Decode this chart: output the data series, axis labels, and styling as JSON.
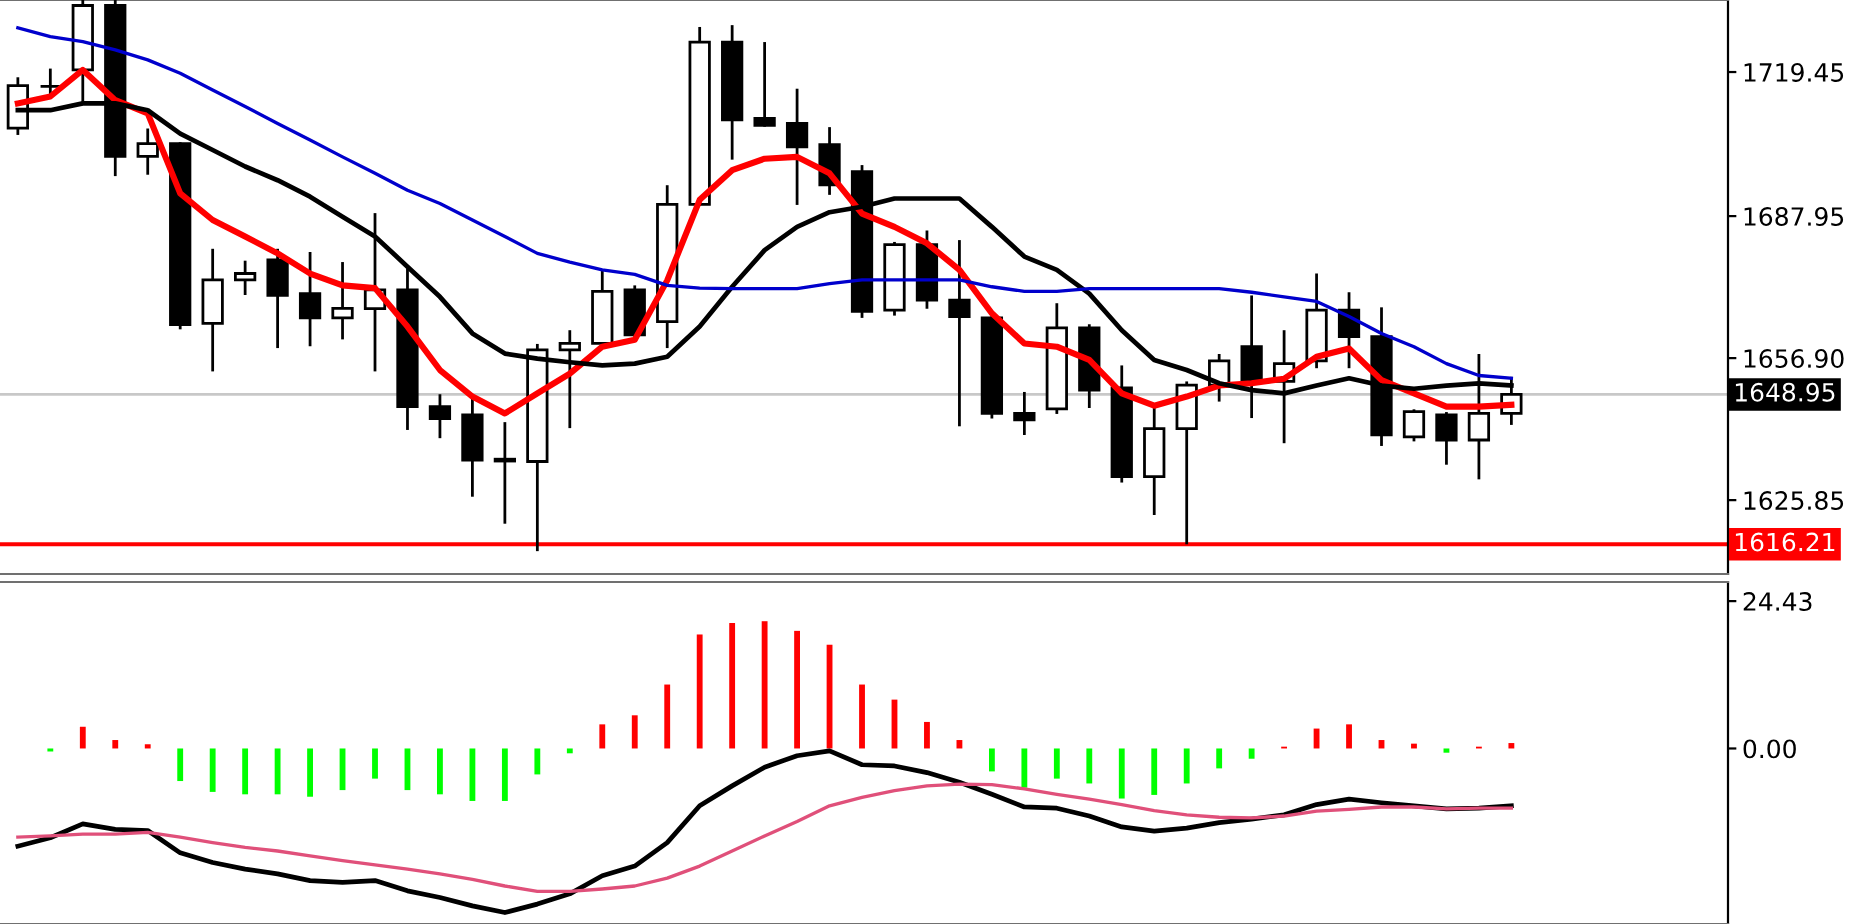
{
  "chart_data": [
    {
      "type": "candlestick",
      "categories": [
        null,
        null,
        null,
        null,
        null,
        null,
        null,
        null,
        null,
        null,
        null,
        null,
        null,
        null,
        null,
        null,
        null,
        null,
        null,
        null,
        null,
        null,
        null,
        null,
        null,
        null,
        null,
        null,
        null,
        null,
        null,
        null,
        null,
        null,
        null,
        null,
        null,
        null,
        null,
        null,
        null,
        null,
        null,
        null,
        null,
        null,
        null
      ],
      "ohlc": [
        [
          1707.2,
          1718.0,
          1706.0,
          1716.5
        ],
        [
          1716.3,
          1719.9,
          1714.8,
          1716.3
        ],
        [
          1719.9,
          1735.0,
          1712.6,
          1734.0
        ],
        [
          1734.0,
          1735.0,
          1697.0,
          1701.0
        ],
        [
          1701.0,
          1706.8,
          1697.3,
          1703.8
        ],
        [
          1703.8,
          1703.8,
          1663.5,
          1664.2
        ],
        [
          1664.5,
          1680.5,
          1654.3,
          1674.0
        ],
        [
          1674.0,
          1677.9,
          1671.0,
          1675.4
        ],
        [
          1678.4,
          1680.5,
          1659.4,
          1670.6
        ],
        [
          1671.0,
          1679.8,
          1659.8,
          1665.7
        ],
        [
          1665.7,
          1677.6,
          1661.3,
          1667.8
        ],
        [
          1667.7,
          1688.3,
          1654.3,
          1671.8
        ],
        [
          1671.8,
          1676.2,
          1641.5,
          1646.3
        ],
        [
          1646.3,
          1648.7,
          1639.7,
          1643.7
        ],
        [
          1644.5,
          1648.0,
          1626.9,
          1634.6
        ],
        [
          1634.8,
          1642.6,
          1621.0,
          1634.4
        ],
        [
          1634.3,
          1659.7,
          1615.0,
          1658.7
        ],
        [
          1658.7,
          1662.7,
          1641.9,
          1660.1
        ],
        [
          1660.1,
          1675.7,
          1660.0,
          1671.5
        ],
        [
          1671.8,
          1672.5,
          1661.5,
          1662.0
        ],
        [
          1664.9,
          1694.4,
          1659.4,
          1690.5
        ],
        [
          1690.5,
          1729.0,
          1690.5,
          1726.0
        ],
        [
          1726.0,
          1729.4,
          1700.6,
          1709.0
        ],
        [
          1709.3,
          1725.7,
          1707.8,
          1707.8
        ],
        [
          1708.2,
          1715.5,
          1690.7,
          1703.1
        ],
        [
          1703.6,
          1707.1,
          1692.9,
          1694.8
        ],
        [
          1697.7,
          1698.8,
          1666.0,
          1667.1
        ],
        [
          1667.4,
          1682.0,
          1666.5,
          1681.7
        ],
        [
          1681.7,
          1684.5,
          1668.0,
          1669.6
        ],
        [
          1669.6,
          1682.4,
          1642.3,
          1666.0
        ],
        [
          1665.7,
          1666.0,
          1644.0,
          1644.8
        ],
        [
          1644.8,
          1649.2,
          1640.4,
          1643.4
        ],
        [
          1645.8,
          1668.6,
          1645.0,
          1663.5
        ],
        [
          1663.5,
          1664.0,
          1646.3,
          1649.9
        ],
        [
          1650.4,
          1655.0,
          1630.0,
          1631.0
        ],
        [
          1631.0,
          1646.3,
          1622.9,
          1641.5
        ],
        [
          1641.5,
          1651.5,
          1616.5,
          1651.0
        ],
        [
          1651.0,
          1657.5,
          1647.7,
          1656.3
        ],
        [
          1659.4,
          1670.3,
          1644.1,
          1651.8
        ],
        [
          1651.8,
          1662.7,
          1638.6,
          1655.7
        ],
        [
          1656.3,
          1675.1,
          1655.0,
          1667.4
        ],
        [
          1667.4,
          1671.0,
          1655.0,
          1661.6
        ],
        [
          1661.6,
          1667.7,
          1638.0,
          1640.1
        ],
        [
          1639.7,
          1645.4,
          1639.0,
          1645.2
        ],
        [
          1644.5,
          1644.8,
          1633.9,
          1639.0
        ],
        [
          1639.0,
          1657.5,
          1630.7,
          1644.8
        ],
        [
          1644.8,
          1652.5,
          1642.6,
          1648.95
        ]
      ],
      "series": [
        {
          "type": "line",
          "color": "#ff0000",
          "values": [
            1712.6,
            1714.1,
            1719.9,
            1713.3,
            1710.4,
            1692.9,
            1687.1,
            1683.5,
            1679.8,
            1675.4,
            1672.8,
            1672.2,
            1663.8,
            1654.3,
            1648.5,
            1644.8,
            1649.2,
            1653.5,
            1659.4,
            1660.9,
            1673.9,
            1691.5,
            1698.0,
            1700.5,
            1700.9,
            1697.3,
            1688.5,
            1685.6,
            1682.0,
            1676.2,
            1666.7,
            1660.1,
            1659.4,
            1656.5,
            1649.2,
            1646.5,
            1648.5,
            1650.9,
            1651.4,
            1652.4,
            1657.2,
            1659.0,
            1652.1,
            1649.2,
            1646.3,
            1646.3,
            1646.7
          ]
        },
        {
          "type": "line",
          "color": "#000000",
          "values": [
            1711.1,
            1711.1,
            1712.6,
            1712.6,
            1711.1,
            1706.0,
            1702.4,
            1698.8,
            1695.8,
            1692.2,
            1687.8,
            1683.5,
            1676.9,
            1670.3,
            1662.3,
            1657.9,
            1656.8,
            1656.0,
            1655.3,
            1655.7,
            1657.2,
            1663.8,
            1672.5,
            1680.5,
            1685.6,
            1688.8,
            1690.0,
            1691.8,
            1691.8,
            1691.8,
            1685.6,
            1679.1,
            1676.2,
            1671.0,
            1663.0,
            1656.5,
            1654.3,
            1651.4,
            1649.9,
            1649.2,
            1650.9,
            1652.5,
            1650.9,
            1650.2,
            1650.9,
            1651.4,
            1650.9
          ]
        },
        {
          "type": "line",
          "color": "#0000cc",
          "values": [
            1729.1,
            1727.2,
            1726.1,
            1724.3,
            1722.1,
            1719.2,
            1715.5,
            1711.9,
            1708.2,
            1704.6,
            1700.9,
            1697.3,
            1693.6,
            1690.7,
            1687.1,
            1683.5,
            1679.8,
            1677.9,
            1676.2,
            1675.2,
            1672.8,
            1672.2,
            1672.1,
            1672.1,
            1672.1,
            1673.2,
            1674.0,
            1674.0,
            1674.0,
            1674.0,
            1672.5,
            1671.5,
            1671.5,
            1672.1,
            1672.1,
            1672.1,
            1672.1,
            1672.1,
            1671.3,
            1670.3,
            1669.3,
            1666.0,
            1662.3,
            1659.4,
            1655.7,
            1653.1,
            1652.5
          ]
        }
      ],
      "ylim": [
        1609.7,
        1735.2
      ],
      "yticks": [
        1719.45,
        1687.95,
        {
          "value": 1656.9,
          "label": "1656.90"
        },
        1625.85
      ],
      "ref_lines": [
        {
          "axis": "y",
          "value": 1648.95,
          "label": "1648.95",
          "color": "#c8c8c8"
        },
        {
          "axis": "y",
          "value": 1616.21,
          "label": "1616.21",
          "color": "#ff0000"
        }
      ],
      "tick_labels": "y"
    },
    {
      "type": "bar",
      "categories": [
        null,
        null,
        null,
        null,
        null,
        null,
        null,
        null,
        null,
        null,
        null,
        null,
        null,
        null,
        null,
        null,
        null,
        null,
        null,
        null,
        null,
        null,
        null,
        null,
        null,
        null,
        null,
        null,
        null,
        null,
        null,
        null,
        null,
        null,
        null,
        null,
        null,
        null,
        null,
        null,
        null,
        null,
        null,
        null,
        null,
        null,
        null
      ],
      "series": [
        {
          "type": "bar",
          "values": [
            null,
            -0.5,
            3.6,
            1.4,
            0.7,
            -5.4,
            -7.2,
            -7.6,
            -7.6,
            -8.0,
            -6.9,
            -5.0,
            -6.9,
            -7.6,
            -8.7,
            -8.7,
            -4.3,
            -0.8,
            4.0,
            5.5,
            10.6,
            18.9,
            20.8,
            21.1,
            19.5,
            17.2,
            10.6,
            8.1,
            4.4,
            1.4,
            -3.8,
            -6.5,
            -5.0,
            -5.8,
            -8.3,
            -7.7,
            -5.8,
            -3.3,
            -1.7,
            0.3,
            3.3,
            4.0,
            1.4,
            0.8,
            -0.7,
            0.3,
            0.9
          ],
          "colors": [
            "#00ff00",
            "#00ff00",
            "#ff0000",
            "#ff0000",
            "#ff0000",
            "#00ff00",
            "#00ff00",
            "#00ff00",
            "#00ff00",
            "#00ff00",
            "#00ff00",
            "#00ff00",
            "#00ff00",
            "#00ff00",
            "#00ff00",
            "#00ff00",
            "#00ff00",
            "#00ff00",
            "#ff0000",
            "#ff0000",
            "#ff0000",
            "#ff0000",
            "#ff0000",
            "#ff0000",
            "#ff0000",
            "#ff0000",
            "#ff0000",
            "#ff0000",
            "#ff0000",
            "#ff0000",
            "#00ff00",
            "#00ff00",
            "#00ff00",
            "#00ff00",
            "#00ff00",
            "#00ff00",
            "#00ff00",
            "#00ff00",
            "#00ff00",
            "#ff0000",
            "#ff0000",
            "#ff0000",
            "#ff0000",
            "#ff0000",
            "#00ff00",
            "#ff0000",
            "#ff0000"
          ]
        },
        {
          "type": "line",
          "color": "#000000",
          "values": [
            -16.2,
            -14.8,
            -12.5,
            -13.4,
            -13.6,
            -17.3,
            -18.9,
            -20.0,
            -20.8,
            -21.9,
            -22.2,
            -21.9,
            -23.6,
            -24.7,
            -26.1,
            -27.2,
            -25.8,
            -24.1,
            -21.1,
            -19.5,
            -15.6,
            -9.5,
            -6.2,
            -3.1,
            -1.2,
            -0.4,
            -2.7,
            -2.9,
            -4.0,
            -5.6,
            -7.6,
            -9.7,
            -9.9,
            -11.2,
            -13.0,
            -13.7,
            -13.2,
            -12.3,
            -11.7,
            -11.0,
            -9.3,
            -8.4,
            -9.0,
            -9.5,
            -10.0,
            -9.9,
            -9.5
          ]
        },
        {
          "type": "line",
          "color": "#e0507a",
          "values": [
            -14.7,
            -14.5,
            -14.2,
            -14.2,
            -13.9,
            -14.7,
            -15.6,
            -16.4,
            -17.0,
            -17.8,
            -18.6,
            -19.3,
            -20.0,
            -20.8,
            -21.7,
            -22.8,
            -23.7,
            -23.7,
            -23.3,
            -22.8,
            -21.5,
            -19.5,
            -17.0,
            -14.5,
            -12.1,
            -9.5,
            -8.1,
            -7.0,
            -6.2,
            -5.9,
            -6.0,
            -6.7,
            -7.6,
            -8.4,
            -9.3,
            -10.3,
            -11.0,
            -11.4,
            -11.5,
            -11.2,
            -10.4,
            -10.1,
            -9.7,
            -9.7,
            -10.0,
            -9.9,
            -9.9
          ]
        }
      ],
      "ylim": [
        -29.1,
        27.6
      ],
      "yticks": [
        24.43,
        {
          "value": 0,
          "label": "0.00"
        }
      ],
      "tick_labels": "y"
    }
  ]
}
